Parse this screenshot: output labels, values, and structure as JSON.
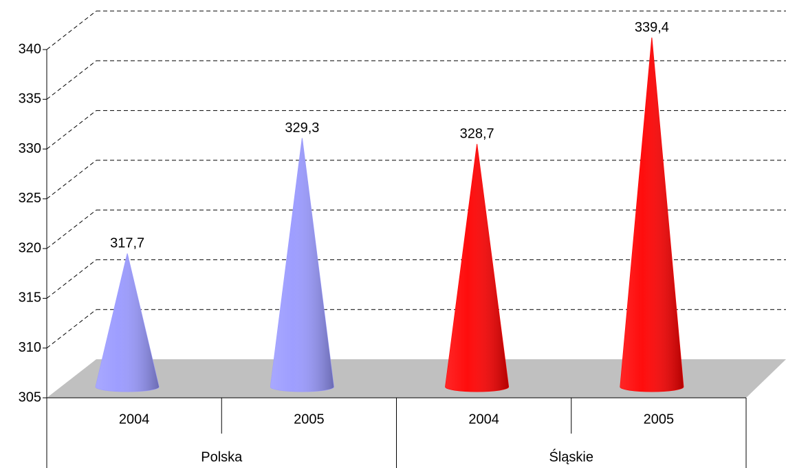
{
  "chart_data": {
    "type": "cone",
    "categories": [
      "2004",
      "2005",
      "2004",
      "2005"
    ],
    "groups": [
      {
        "name": "Polska",
        "span": 2
      },
      {
        "name": "Śląskie",
        "span": 2
      }
    ],
    "values": [
      317.7,
      329.3,
      328.7,
      339.4
    ],
    "value_labels": [
      "317,7",
      "329,3",
      "328,7",
      "339,4"
    ],
    "colors": [
      "#9999ff",
      "#9999ff",
      "#ff0000",
      "#ff0000"
    ],
    "ylim": [
      305,
      340
    ],
    "yticks": [
      305,
      310,
      315,
      320,
      325,
      330,
      335,
      340
    ],
    "grid": true
  }
}
